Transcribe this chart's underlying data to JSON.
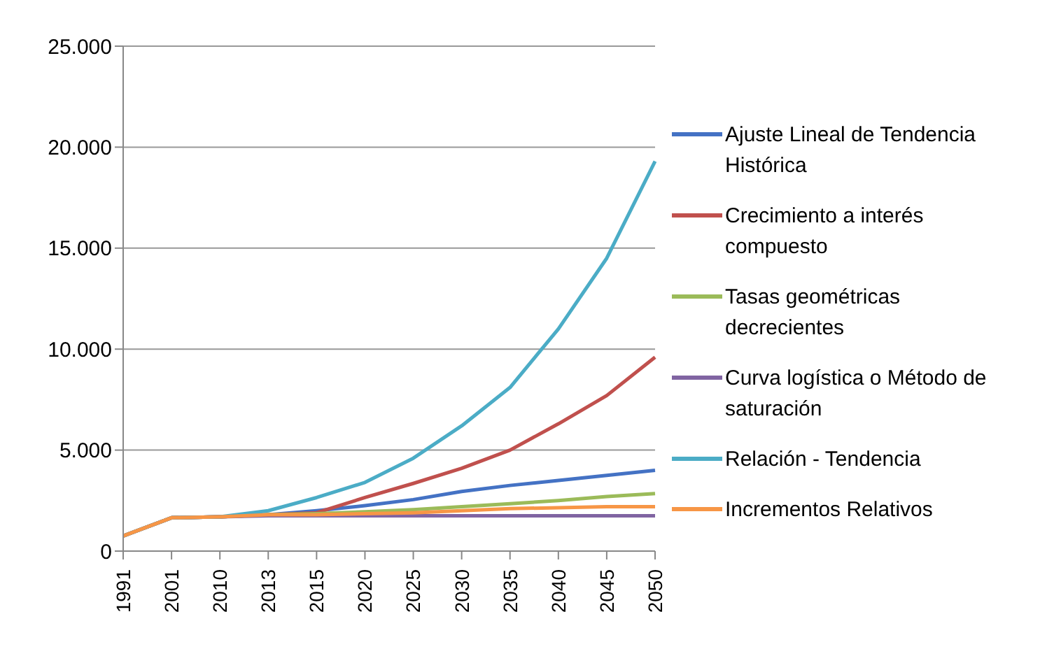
{
  "chart_data": {
    "type": "line",
    "categories": [
      "1991",
      "2001",
      "2010",
      "2013",
      "2015",
      "2020",
      "2025",
      "2030",
      "2035",
      "2040",
      "2045",
      "2050"
    ],
    "series": [
      {
        "name": "Ajuste Lineal de Tendencia Histórica",
        "color": "#4472c4",
        "values": [
          750,
          1650,
          1700,
          1800,
          2000,
          2250,
          2550,
          2950,
          3250,
          3500,
          3750,
          4000
        ]
      },
      {
        "name": "Crecimiento a interés compuesto",
        "color": "#c0504d",
        "values": [
          750,
          1650,
          1700,
          1800,
          1900,
          2650,
          3350,
          4100,
          5000,
          6300,
          7700,
          9600
        ]
      },
      {
        "name": "Tasas geométricas decrecientes",
        "color": "#9bbb59",
        "values": [
          750,
          1650,
          1700,
          1800,
          1850,
          1950,
          2050,
          2200,
          2350,
          2500,
          2700,
          2850
        ]
      },
      {
        "name": "Curva logística o Método de saturación",
        "color": "#8064a2",
        "values": [
          750,
          1650,
          1700,
          1750,
          1750,
          1750,
          1750,
          1750,
          1750,
          1750,
          1750,
          1750
        ]
      },
      {
        "name": "Relación - Tendencia",
        "color": "#4bacc6",
        "values": [
          750,
          1650,
          1700,
          2000,
          2650,
          3400,
          4600,
          6200,
          8100,
          11000,
          14500,
          19300
        ]
      },
      {
        "name": "Incrementos Relativos",
        "color": "#f79646",
        "values": [
          750,
          1650,
          1700,
          1800,
          1800,
          1850,
          1900,
          2000,
          2100,
          2150,
          2200,
          2200
        ]
      }
    ],
    "ylim": [
      0,
      25000
    ],
    "yticks": [
      {
        "value": 0,
        "label": "0"
      },
      {
        "value": 5000,
        "label": "5.000"
      },
      {
        "value": 10000,
        "label": "10.000"
      },
      {
        "value": 15000,
        "label": "15.000"
      },
      {
        "value": 20000,
        "label": "20.000"
      },
      {
        "value": 25000,
        "label": "25.000"
      }
    ],
    "grid": "y",
    "legend": "right",
    "marker": "none",
    "line_style": "solid"
  }
}
